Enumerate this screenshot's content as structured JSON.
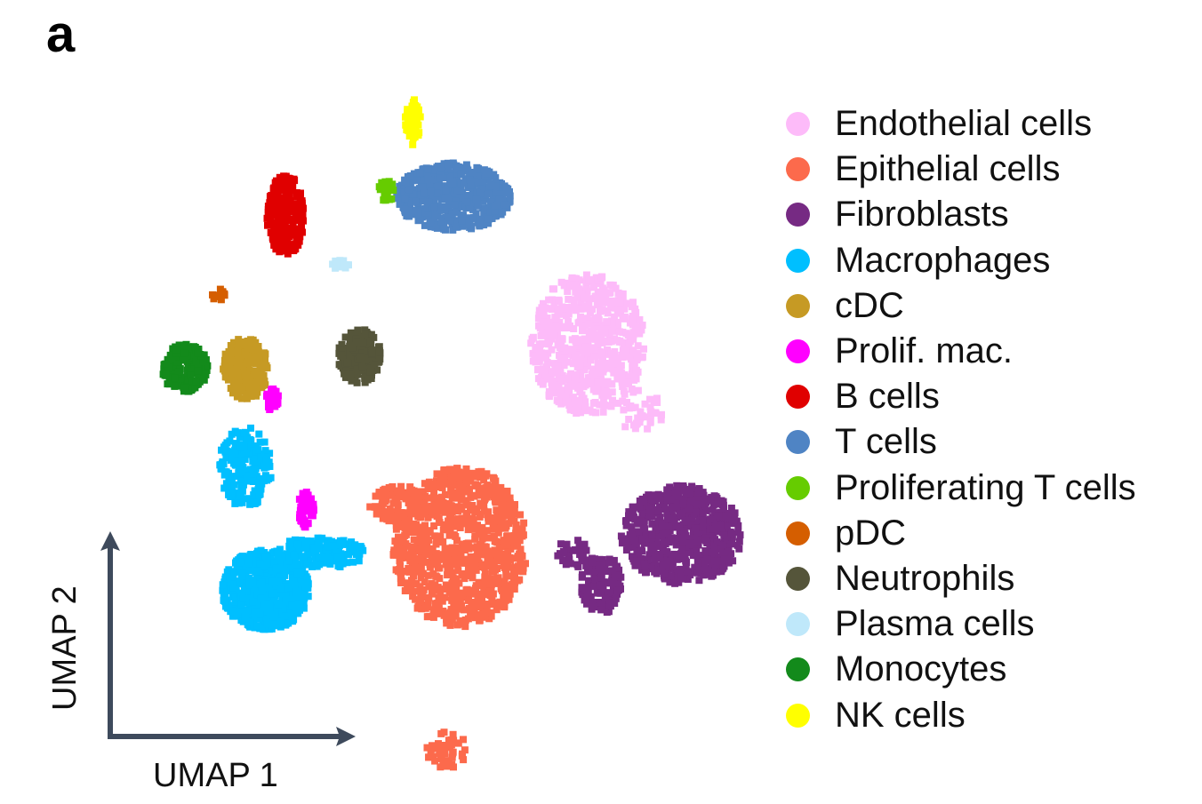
{
  "panel_label": "a",
  "chart_data": {
    "type": "scatter",
    "title": "",
    "xlabel": "UMAP 1",
    "ylabel": "UMAP 2",
    "axes_style": "arrow-axes",
    "grid": false,
    "ticks": false,
    "legend_position": "right",
    "series": [
      {
        "name": "Endothelial cells",
        "color": "#FDBBF9",
        "clusters": [
          {
            "cx": 6.6,
            "cy": 6.2,
            "rx": 0.85,
            "ry": 1.15,
            "n": 650
          },
          {
            "cx": 7.4,
            "cy": 5.1,
            "rx": 0.35,
            "ry": 0.35,
            "n": 40
          }
        ]
      },
      {
        "name": "Epithelial cells",
        "color": "#FC6A4C",
        "clusters": [
          {
            "cx": 4.7,
            "cy": 2.9,
            "rx": 1.0,
            "ry": 1.3,
            "n": 900
          },
          {
            "cx": 3.8,
            "cy": 3.6,
            "rx": 0.45,
            "ry": 0.3,
            "n": 80
          },
          {
            "cx": 4.5,
            "cy": -0.4,
            "rx": 0.3,
            "ry": 0.3,
            "n": 45
          }
        ]
      },
      {
        "name": "Fibroblasts",
        "color": "#762A83",
        "clusters": [
          {
            "cx": 8.0,
            "cy": 3.1,
            "rx": 0.9,
            "ry": 0.8,
            "n": 650
          },
          {
            "cx": 6.8,
            "cy": 2.3,
            "rx": 0.3,
            "ry": 0.5,
            "n": 120
          },
          {
            "cx": 6.4,
            "cy": 2.8,
            "rx": 0.25,
            "ry": 0.25,
            "n": 30
          }
        ]
      },
      {
        "name": "Macrophages",
        "color": "#00BFFF",
        "clusters": [
          {
            "cx": 1.8,
            "cy": 2.2,
            "rx": 0.65,
            "ry": 0.65,
            "n": 600
          },
          {
            "cx": 2.6,
            "cy": 2.8,
            "rx": 0.7,
            "ry": 0.25,
            "n": 150
          },
          {
            "cx": 1.5,
            "cy": 4.2,
            "rx": 0.4,
            "ry": 0.65,
            "n": 220
          }
        ]
      },
      {
        "name": "cDC",
        "color": "#C69A24",
        "clusters": [
          {
            "cx": 1.5,
            "cy": 5.8,
            "rx": 0.35,
            "ry": 0.5,
            "n": 220
          }
        ]
      },
      {
        "name": "Prolif. mac.",
        "color": "#FF00FF",
        "clusters": [
          {
            "cx": 2.4,
            "cy": 3.5,
            "rx": 0.12,
            "ry": 0.3,
            "n": 40
          },
          {
            "cx": 1.9,
            "cy": 5.3,
            "rx": 0.1,
            "ry": 0.2,
            "n": 30
          }
        ]
      },
      {
        "name": "B cells",
        "color": "#E00000",
        "clusters": [
          {
            "cx": 2.1,
            "cy": 8.3,
            "rx": 0.28,
            "ry": 0.65,
            "n": 220
          }
        ]
      },
      {
        "name": "T cells",
        "color": "#4F84C4",
        "clusters": [
          {
            "cx": 4.6,
            "cy": 8.6,
            "rx": 0.85,
            "ry": 0.55,
            "n": 550
          }
        ]
      },
      {
        "name": "Proliferating T cells",
        "color": "#66CC00",
        "clusters": [
          {
            "cx": 3.6,
            "cy": 8.7,
            "rx": 0.12,
            "ry": 0.18,
            "n": 25
          }
        ]
      },
      {
        "name": "pDC",
        "color": "#D55E00",
        "clusters": [
          {
            "cx": 1.1,
            "cy": 7.0,
            "rx": 0.1,
            "ry": 0.1,
            "n": 12
          }
        ]
      },
      {
        "name": "Neutrophils",
        "color": "#55553A",
        "clusters": [
          {
            "cx": 3.2,
            "cy": 6.0,
            "rx": 0.32,
            "ry": 0.45,
            "n": 170
          }
        ]
      },
      {
        "name": "Plasma cells",
        "color": "#BFE8FA",
        "clusters": [
          {
            "cx": 2.9,
            "cy": 7.5,
            "rx": 0.15,
            "ry": 0.08,
            "n": 15
          }
        ]
      },
      {
        "name": "Monocytes",
        "color": "#138A1B",
        "clusters": [
          {
            "cx": 0.6,
            "cy": 5.8,
            "rx": 0.35,
            "ry": 0.4,
            "n": 200
          }
        ]
      },
      {
        "name": "NK cells",
        "color": "#FFFF00",
        "clusters": [
          {
            "cx": 4.0,
            "cy": 9.8,
            "rx": 0.12,
            "ry": 0.4,
            "n": 50
          }
        ]
      }
    ],
    "xlim": [
      -0.5,
      9.5
    ],
    "ylim": [
      -1.5,
      10.5
    ]
  }
}
